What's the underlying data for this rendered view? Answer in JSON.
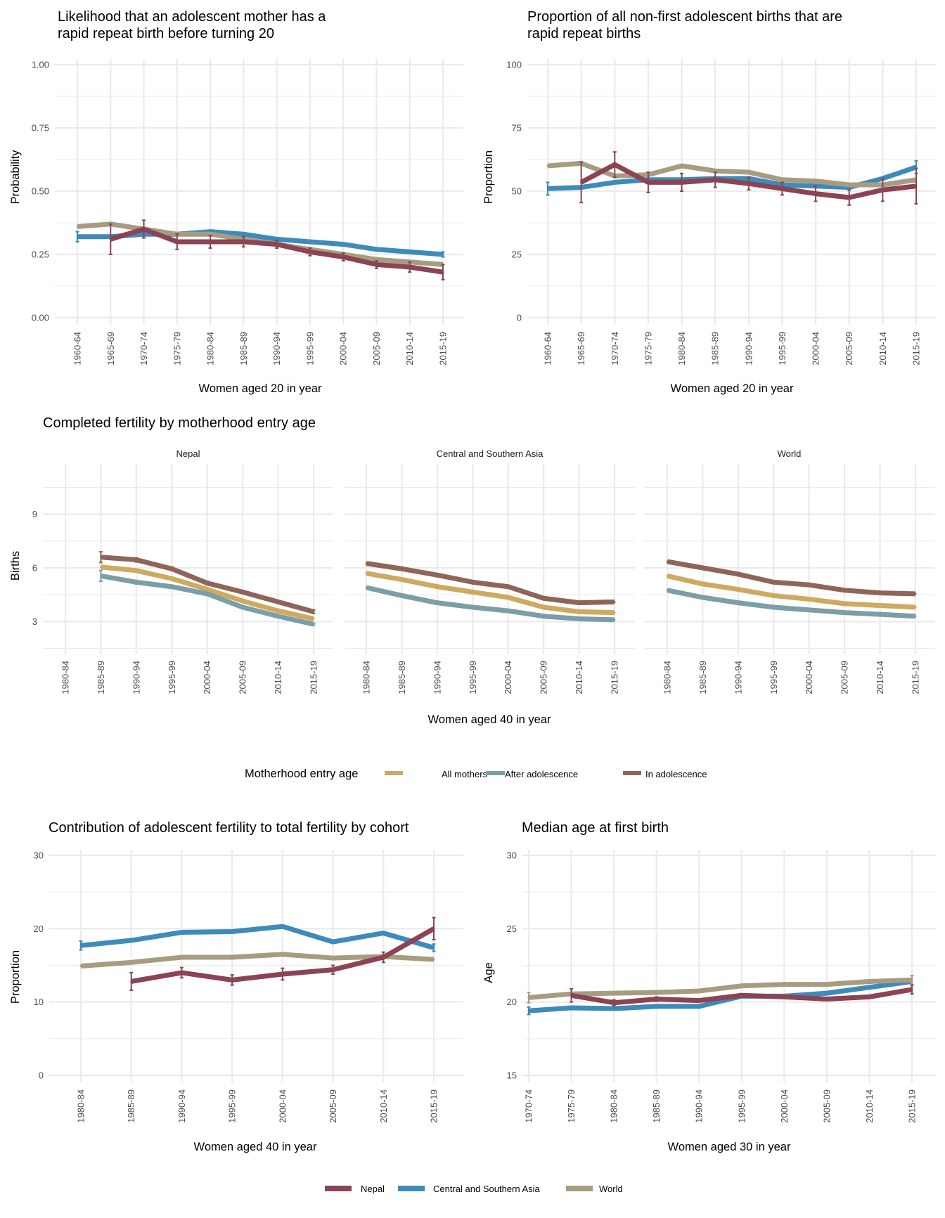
{
  "colors": {
    "nepal": "#8b4454",
    "csa": "#3d8bba",
    "world": "#a89c80",
    "all_mothers": "#cdaa60",
    "after_adolescence": "#7b9ea7",
    "in_adolescence": "#8e6558"
  },
  "legend_region": {
    "items": [
      {
        "key": "nepal",
        "label": "Nepal"
      },
      {
        "key": "csa",
        "label": "Central and Southern Asia"
      },
      {
        "key": "world",
        "label": "World"
      }
    ]
  },
  "legend_entry": {
    "title": "Motherhood entry age",
    "items": [
      {
        "key": "all_mothers",
        "label": "All mothers"
      },
      {
        "key": "after_adolescence",
        "label": "After adolescence"
      },
      {
        "key": "in_adolescence",
        "label": "In adolescence"
      }
    ]
  },
  "chart_data": [
    {
      "id": "rapid_repeat_likelihood",
      "type": "line",
      "title_lines": [
        "Likelihood that an adolescent mother has a",
        "rapid repeat birth before turning 20"
      ],
      "xlabel": "Women aged 20 in year",
      "ylabel": "Probability",
      "ylim": [
        0,
        1
      ],
      "yticks": [
        0,
        0.25,
        0.5,
        0.75,
        1
      ],
      "ytick_labels": [
        "0.00",
        "0.25",
        "0.50",
        "0.75",
        "1.00"
      ],
      "grid": true,
      "categories": [
        "1960-64",
        "1965-69",
        "1970-74",
        "1975-79",
        "1980-84",
        "1985-89",
        "1990-94",
        "1995-99",
        "2000-04",
        "2005-09",
        "2010-14",
        "2015-19"
      ],
      "series": [
        {
          "key": "csa",
          "name": "Central and Southern Asia",
          "values": [
            0.32,
            0.32,
            0.33,
            0.33,
            0.34,
            0.33,
            0.31,
            0.3,
            0.29,
            0.27,
            0.26,
            0.25
          ]
        },
        {
          "key": "world",
          "name": "World",
          "values": [
            0.36,
            0.37,
            0.35,
            0.33,
            0.33,
            0.31,
            0.29,
            0.27,
            0.25,
            0.23,
            0.22,
            0.21
          ]
        },
        {
          "key": "nepal",
          "name": "Nepal",
          "values": [
            null,
            0.31,
            0.35,
            0.3,
            0.3,
            0.3,
            0.29,
            0.26,
            0.24,
            0.21,
            0.2,
            0.18
          ]
        }
      ]
    },
    {
      "id": "rapid_repeat_proportion",
      "type": "line",
      "title_lines": [
        "Proportion of all non-first adolescent births that are",
        "rapid repeat births"
      ],
      "xlabel": "Women aged 20 in year",
      "ylabel": "Proportion",
      "ylim": [
        0,
        100
      ],
      "yticks": [
        0,
        25,
        50,
        75,
        100
      ],
      "ytick_labels": [
        "0",
        "25",
        "50",
        "75",
        "100"
      ],
      "grid": true,
      "categories": [
        "1960-64",
        "1965-69",
        "1970-74",
        "1975-79",
        "1980-84",
        "1985-89",
        "1990-94",
        "1995-99",
        "2000-04",
        "2005-09",
        "2010-14",
        "2015-19"
      ],
      "series": [
        {
          "key": "csa",
          "name": "Central and Southern Asia",
          "values": [
            51,
            51.5,
            53.5,
            54.5,
            54.5,
            55,
            55,
            52.5,
            52,
            51.5,
            55,
            59.5
          ]
        },
        {
          "key": "world",
          "name": "World",
          "values": [
            60,
            61,
            56,
            56.5,
            60,
            58,
            57.5,
            54.5,
            54,
            52.5,
            52.5,
            54.5
          ]
        },
        {
          "key": "nepal",
          "name": "Nepal",
          "values": [
            null,
            53.5,
            60.5,
            53.5,
            53.5,
            54.5,
            53,
            51,
            49,
            47.5,
            50.5,
            52
          ]
        }
      ]
    },
    {
      "id": "completed_fertility",
      "type": "line",
      "title": "Completed fertility by motherhood entry age",
      "xlabel": "Women aged 40 in year",
      "ylabel": "Births",
      "ylim": [
        1.5,
        11.5
      ],
      "yticks": [
        3,
        6,
        9
      ],
      "ytick_labels": [
        "3",
        "6",
        "9"
      ],
      "grid": true,
      "categories": [
        "1980-84",
        "1985-89",
        "1990-94",
        "1995-99",
        "2000-04",
        "2005-09",
        "2010-14",
        "2015-19"
      ],
      "facets": [
        {
          "name": "Nepal",
          "series": [
            {
              "key": "in_adolescence",
              "name": "In adolescence",
              "values": [
                null,
                6.6,
                6.45,
                5.95,
                5.15,
                4.65,
                4.1,
                3.55
              ]
            },
            {
              "key": "all_mothers",
              "name": "All mothers",
              "values": [
                null,
                6.05,
                5.85,
                5.4,
                4.8,
                4.15,
                3.6,
                3.15
              ]
            },
            {
              "key": "after_adolescence",
              "name": "After adolescence",
              "values": [
                null,
                5.55,
                5.2,
                4.95,
                4.55,
                3.8,
                3.3,
                2.85
              ]
            }
          ]
        },
        {
          "name": "Central and Southern Asia",
          "series": [
            {
              "key": "in_adolescence",
              "name": "In adolescence",
              "values": [
                6.25,
                5.95,
                5.6,
                5.2,
                4.95,
                4.3,
                4.05,
                4.1
              ]
            },
            {
              "key": "all_mothers",
              "name": "All mothers",
              "values": [
                5.7,
                5.35,
                4.95,
                4.65,
                4.35,
                3.8,
                3.55,
                3.5
              ]
            },
            {
              "key": "after_adolescence",
              "name": "After adolescence",
              "values": [
                4.9,
                4.45,
                4.05,
                3.8,
                3.6,
                3.3,
                3.15,
                3.1
              ]
            }
          ]
        },
        {
          "name": "World",
          "series": [
            {
              "key": "in_adolescence",
              "name": "In adolescence",
              "values": [
                6.35,
                6.0,
                5.65,
                5.2,
                5.05,
                4.75,
                4.6,
                4.55
              ]
            },
            {
              "key": "all_mothers",
              "name": "All mothers",
              "values": [
                5.55,
                5.1,
                4.8,
                4.45,
                4.25,
                4.0,
                3.9,
                3.8
              ]
            },
            {
              "key": "after_adolescence",
              "name": "After adolescence",
              "values": [
                4.75,
                4.35,
                4.05,
                3.8,
                3.65,
                3.5,
                3.4,
                3.3
              ]
            }
          ]
        }
      ]
    },
    {
      "id": "adolescent_contribution",
      "type": "line",
      "title": "Contribution of adolescent fertility to total fertility by cohort",
      "xlabel": "Women aged 40 in year",
      "ylabel": "Proportion",
      "ylim": [
        0,
        30
      ],
      "yticks": [
        0,
        10,
        20,
        30
      ],
      "ytick_labels": [
        "0",
        "10",
        "20",
        "30"
      ],
      "grid": true,
      "categories": [
        "1980-84",
        "1985-89",
        "1990-94",
        "1995-99",
        "2000-04",
        "2005-09",
        "2010-14",
        "2015-19"
      ],
      "series": [
        {
          "key": "csa",
          "name": "Central and Southern Asia",
          "values": [
            17.7,
            18.4,
            19.5,
            19.6,
            20.3,
            18.2,
            19.4,
            17.4
          ]
        },
        {
          "key": "world",
          "name": "World",
          "values": [
            14.9,
            15.4,
            16.1,
            16.1,
            16.5,
            16.0,
            16.2,
            15.8
          ]
        },
        {
          "key": "nepal",
          "name": "Nepal",
          "values": [
            null,
            12.8,
            14.0,
            13.0,
            13.8,
            14.4,
            16.1,
            20.0
          ]
        }
      ]
    },
    {
      "id": "median_age_first_birth",
      "type": "line",
      "title": "Median age at first birth",
      "xlabel": "Women aged 30 in year",
      "ylabel": "Age",
      "ylim": [
        15,
        30
      ],
      "yticks": [
        15,
        20,
        25,
        30
      ],
      "ytick_labels": [
        "15",
        "20",
        "25",
        "30"
      ],
      "grid": true,
      "categories": [
        "1970-74",
        "1975-79",
        "1980-84",
        "1985-89",
        "1990-94",
        "1995-99",
        "2000-04",
        "2005-09",
        "2010-14",
        "2015-19"
      ],
      "series": [
        {
          "key": "csa",
          "name": "Central and Southern Asia",
          "values": [
            19.4,
            19.6,
            19.55,
            19.7,
            19.7,
            20.4,
            20.4,
            20.6,
            21.0,
            21.4
          ]
        },
        {
          "key": "world",
          "name": "World",
          "values": [
            20.3,
            20.55,
            20.6,
            20.65,
            20.75,
            21.1,
            21.2,
            21.2,
            21.4,
            21.5
          ]
        },
        {
          "key": "nepal",
          "name": "Nepal",
          "values": [
            null,
            20.45,
            19.95,
            20.2,
            20.1,
            20.45,
            20.35,
            20.2,
            20.35,
            20.85
          ]
        }
      ]
    }
  ]
}
